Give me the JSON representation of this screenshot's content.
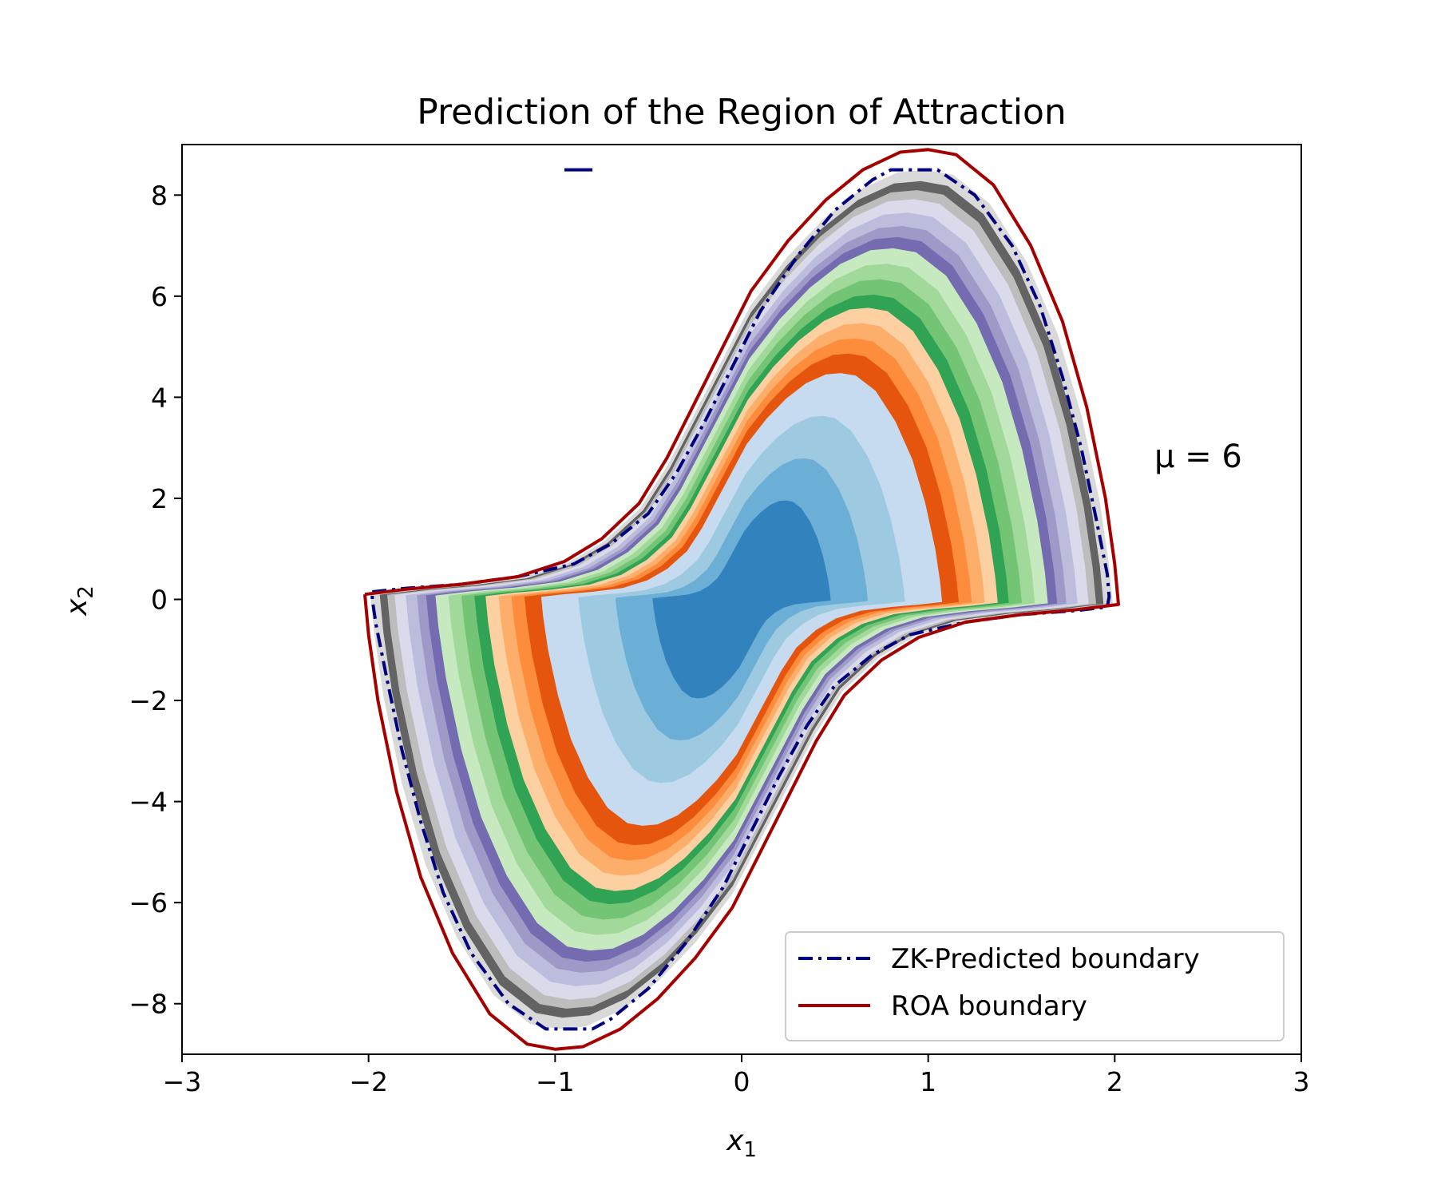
{
  "chart_data": {
    "type": "line",
    "title": "Prediction of the Region of Attraction",
    "xlabel": "x",
    "xlabel_sub": "1",
    "ylabel": "x",
    "ylabel_sub": "2",
    "xlim": [
      -3,
      3
    ],
    "ylim": [
      -9,
      9
    ],
    "x_ticks": [
      -3,
      -2,
      -1,
      0,
      1,
      2,
      3
    ],
    "x_tick_labels": [
      "−3",
      "−2",
      "−1",
      "0",
      "1",
      "2",
      "3"
    ],
    "y_ticks": [
      -8,
      -6,
      -4,
      -2,
      0,
      2,
      4,
      6,
      8
    ],
    "y_tick_labels": [
      "−8",
      "−6",
      "−4",
      "−2",
      "0",
      "2",
      "4",
      "6",
      "8"
    ],
    "annotation": "μ = 6",
    "legend_position": "lower-right",
    "series": [
      {
        "name": "ZK-Predicted boundary",
        "style": "dash-dot",
        "color": "#00007f",
        "points": [
          [
            -1.98,
            0.15
          ],
          [
            -1.8,
            0.22
          ],
          [
            -1.5,
            0.3
          ],
          [
            -1.2,
            0.45
          ],
          [
            -0.9,
            0.7
          ],
          [
            -0.7,
            1.1
          ],
          [
            -0.5,
            1.7
          ],
          [
            -0.35,
            2.5
          ],
          [
            -0.2,
            3.5
          ],
          [
            -0.05,
            4.6
          ],
          [
            0.1,
            5.7
          ],
          [
            0.3,
            6.8
          ],
          [
            0.5,
            7.7
          ],
          [
            0.7,
            8.3
          ],
          [
            0.8,
            8.5
          ],
          [
            1.05,
            8.5
          ],
          [
            1.25,
            8.0
          ],
          [
            1.45,
            7.0
          ],
          [
            1.6,
            5.8
          ],
          [
            1.72,
            4.4
          ],
          [
            1.82,
            3.0
          ],
          [
            1.9,
            1.6
          ],
          [
            1.96,
            0.5
          ],
          [
            1.97,
            0.05
          ],
          [
            1.96,
            -0.15
          ],
          [
            1.8,
            -0.22
          ],
          [
            1.5,
            -0.3
          ],
          [
            1.2,
            -0.45
          ],
          [
            0.9,
            -0.7
          ],
          [
            0.7,
            -1.1
          ],
          [
            0.5,
            -1.7
          ],
          [
            0.35,
            -2.5
          ],
          [
            0.2,
            -3.5
          ],
          [
            0.05,
            -4.6
          ],
          [
            -0.1,
            -5.7
          ],
          [
            -0.3,
            -6.8
          ],
          [
            -0.5,
            -7.7
          ],
          [
            -0.7,
            -8.3
          ],
          [
            -0.8,
            -8.5
          ],
          [
            -1.05,
            -8.5
          ],
          [
            -1.25,
            -8.0
          ],
          [
            -1.45,
            -7.0
          ],
          [
            -1.6,
            -5.8
          ],
          [
            -1.72,
            -4.4
          ],
          [
            -1.82,
            -3.0
          ],
          [
            -1.9,
            -1.6
          ],
          [
            -1.96,
            -0.5
          ],
          [
            -1.98,
            0.0
          ],
          [
            -1.98,
            0.15
          ]
        ]
      },
      {
        "name": "ZK-Predicted boundary (fragment)",
        "style": "solid",
        "color": "#00007f",
        "points": [
          [
            -0.95,
            8.5
          ],
          [
            -0.8,
            8.5
          ]
        ]
      },
      {
        "name": "ROA boundary",
        "style": "solid",
        "color": "#a50000",
        "points": [
          [
            -2.02,
            0.1
          ],
          [
            -1.8,
            0.2
          ],
          [
            -1.5,
            0.3
          ],
          [
            -1.2,
            0.45
          ],
          [
            -0.95,
            0.75
          ],
          [
            -0.75,
            1.2
          ],
          [
            -0.55,
            1.9
          ],
          [
            -0.4,
            2.8
          ],
          [
            -0.25,
            3.9
          ],
          [
            -0.1,
            5.0
          ],
          [
            0.05,
            6.1
          ],
          [
            0.25,
            7.1
          ],
          [
            0.45,
            7.9
          ],
          [
            0.65,
            8.5
          ],
          [
            0.85,
            8.85
          ],
          [
            1.0,
            8.9
          ],
          [
            1.15,
            8.8
          ],
          [
            1.35,
            8.2
          ],
          [
            1.55,
            7.0
          ],
          [
            1.72,
            5.5
          ],
          [
            1.85,
            3.8
          ],
          [
            1.95,
            2.0
          ],
          [
            2.0,
            0.7
          ],
          [
            2.02,
            -0.1
          ],
          [
            1.8,
            -0.2
          ],
          [
            1.5,
            -0.3
          ],
          [
            1.2,
            -0.45
          ],
          [
            0.95,
            -0.75
          ],
          [
            0.75,
            -1.2
          ],
          [
            0.55,
            -1.9
          ],
          [
            0.4,
            -2.8
          ],
          [
            0.25,
            -3.9
          ],
          [
            0.1,
            -5.0
          ],
          [
            -0.05,
            -6.1
          ],
          [
            -0.25,
            -7.1
          ],
          [
            -0.45,
            -7.9
          ],
          [
            -0.65,
            -8.5
          ],
          [
            -0.85,
            -8.85
          ],
          [
            -1.0,
            -8.9
          ],
          [
            -1.15,
            -8.8
          ],
          [
            -1.35,
            -8.2
          ],
          [
            -1.55,
            -7.0
          ],
          [
            -1.72,
            -5.5
          ],
          [
            -1.85,
            -3.8
          ],
          [
            -1.95,
            -2.0
          ],
          [
            -2.0,
            -0.7
          ],
          [
            -2.02,
            0.1
          ]
        ]
      }
    ],
    "filled_contours": [
      {
        "name": "level-1",
        "color": "#d9d9d9",
        "scale": 1.0
      },
      {
        "name": "level-2",
        "color": "#636363",
        "scale": 0.975
      },
      {
        "name": "level-3",
        "color": "#bdbdbd",
        "scale": 0.955
      },
      {
        "name": "level-4",
        "color": "#dadaeb",
        "scale": 0.935
      },
      {
        "name": "level-5",
        "color": "#bcbddc",
        "scale": 0.905
      },
      {
        "name": "level-6",
        "color": "#9e9ac8",
        "scale": 0.875
      },
      {
        "name": "level-7",
        "color": "#756bb1",
        "scale": 0.85
      },
      {
        "name": "level-8",
        "color": "#c7e9c0",
        "scale": 0.825
      },
      {
        "name": "level-9",
        "color": "#a1d99b",
        "scale": 0.79
      },
      {
        "name": "level-10",
        "color": "#74c476",
        "scale": 0.755
      },
      {
        "name": "level-11",
        "color": "#31a354",
        "scale": 0.72
      },
      {
        "name": "level-12",
        "color": "#fdd0a2",
        "scale": 0.69
      },
      {
        "name": "level-13",
        "color": "#fdae6b",
        "scale": 0.655
      },
      {
        "name": "level-14",
        "color": "#fd8d3c",
        "scale": 0.62
      },
      {
        "name": "level-15",
        "color": "#e6550d",
        "scale": 0.585
      },
      {
        "name": "level-16",
        "color": "#c6dbef",
        "scale": 0.54
      },
      {
        "name": "level-17",
        "color": "#9ecae1",
        "scale": 0.44
      },
      {
        "name": "level-18",
        "color": "#6baed6",
        "scale": 0.34
      },
      {
        "name": "level-19",
        "color": "#3182bd",
        "scale": 0.24
      }
    ]
  },
  "legend": {
    "items": [
      {
        "label": "ZK-Predicted boundary",
        "color": "#00007f",
        "style": "dash-dot"
      },
      {
        "label": "ROA boundary",
        "color": "#a50000",
        "style": "solid"
      }
    ]
  }
}
